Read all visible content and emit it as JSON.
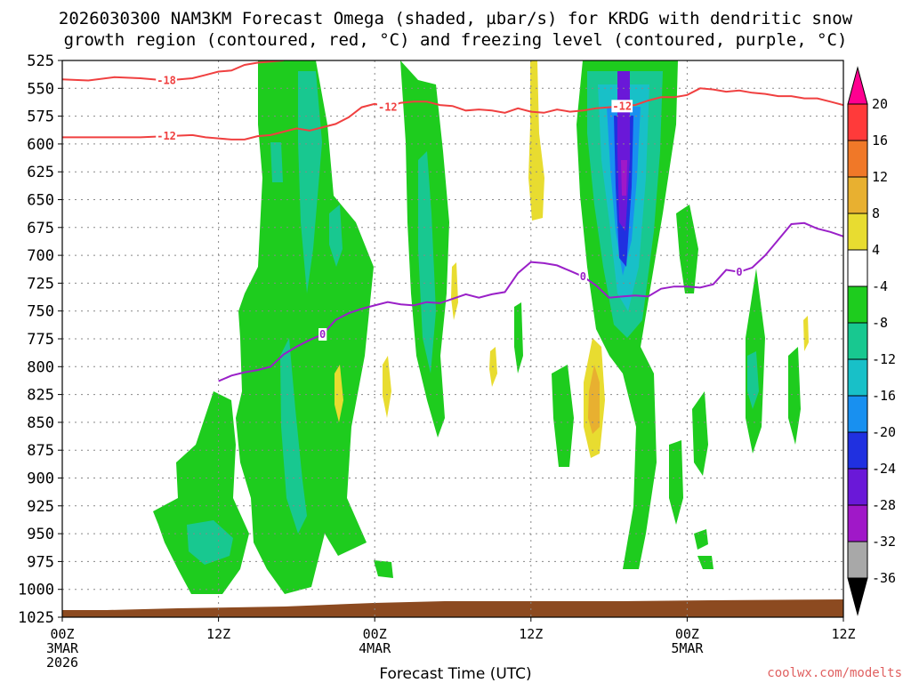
{
  "title_line1": "2026030300 NAM3KM Forecast Omega (shaded, µbar/s) for KRDG with dendritic snow",
  "title_line2": "growth region (contoured, red, °C) and freezing level (contoured, purple, °C)",
  "x_axis_title": "Forecast Time (UTC)",
  "credit": "coolwx.com/modelts",
  "colors": {
    "dgz": "#f04040",
    "freezing": "#9a20c8",
    "terrain": "#8c4a20",
    "grid": "#888888"
  },
  "chart_data": {
    "type": "heatmap",
    "x_hours_range": [
      0,
      60
    ],
    "y_pressure_range": [
      525,
      1025
    ],
    "y_ticks": [
      525,
      550,
      575,
      600,
      625,
      650,
      675,
      700,
      725,
      750,
      775,
      800,
      825,
      850,
      875,
      900,
      925,
      950,
      975,
      1000,
      1025
    ],
    "x_ticks": [
      {
        "hour": 0,
        "lines": [
          "00Z",
          "3MAR",
          "2026"
        ]
      },
      {
        "hour": 12,
        "lines": [
          "12Z"
        ]
      },
      {
        "hour": 24,
        "lines": [
          "00Z",
          "4MAR"
        ]
      },
      {
        "hour": 36,
        "lines": [
          "12Z"
        ]
      },
      {
        "hour": 48,
        "lines": [
          "00Z",
          "5MAR"
        ]
      },
      {
        "hour": 60,
        "lines": [
          "12Z"
        ]
      }
    ],
    "colorbar": [
      {
        "label": "20",
        "color": "#ff0090"
      },
      {
        "label": "16",
        "color": "#ff3a3a"
      },
      {
        "label": "12",
        "color": "#f07828"
      },
      {
        "label": "8",
        "color": "#e8b030"
      },
      {
        "label": "4",
        "color": "#e8dc30"
      },
      {
        "label": "-4",
        "color": "#ffffff"
      },
      {
        "label": "-8",
        "color": "#1ecc1e"
      },
      {
        "label": "-12",
        "color": "#18c890"
      },
      {
        "label": "-16",
        "color": "#18c0c8"
      },
      {
        "label": "-20",
        "color": "#1890f0"
      },
      {
        "label": "-24",
        "color": "#2030e0"
      },
      {
        "label": "-28",
        "color": "#6a18d8"
      },
      {
        "label": "-32",
        "color": "#a018c8"
      },
      {
        "label": "-36",
        "color": "#a8a8a8"
      },
      {
        "label": "",
        "color": "#000000"
      }
    ],
    "dgz_contours": [
      {
        "label": "-18",
        "points": [
          [
            0,
            542
          ],
          [
            2,
            543
          ],
          [
            4,
            540
          ],
          [
            6,
            541
          ],
          [
            8,
            543
          ],
          [
            10,
            541
          ],
          [
            11,
            538
          ],
          [
            12,
            535
          ],
          [
            13,
            534
          ],
          [
            14,
            529
          ],
          [
            15,
            527
          ],
          [
            16,
            526
          ],
          [
            17,
            525
          ]
        ]
      },
      {
        "label": "-12",
        "points": [
          [
            0,
            594
          ],
          [
            2,
            594
          ],
          [
            4,
            594
          ],
          [
            6,
            594
          ],
          [
            8,
            593
          ],
          [
            10,
            592
          ],
          [
            11,
            594
          ],
          [
            12,
            595
          ],
          [
            13,
            596
          ],
          [
            14,
            596
          ],
          [
            15,
            593
          ],
          [
            16,
            592
          ],
          [
            17,
            589
          ],
          [
            18,
            586
          ],
          [
            19,
            588
          ],
          [
            20,
            585
          ],
          [
            21,
            582
          ],
          [
            22,
            576
          ],
          [
            23,
            567
          ],
          [
            24,
            564
          ],
          [
            25,
            567
          ],
          [
            26,
            563
          ],
          [
            27,
            562
          ],
          [
            28,
            562
          ],
          [
            29,
            565
          ],
          [
            30,
            566
          ],
          [
            31,
            570
          ],
          [
            32,
            569
          ],
          [
            33,
            570
          ],
          [
            34,
            572
          ],
          [
            35,
            568
          ],
          [
            36,
            571
          ],
          [
            37,
            572
          ],
          [
            38,
            569
          ],
          [
            39,
            571
          ],
          [
            40,
            570
          ],
          [
            41,
            568
          ],
          [
            42,
            567
          ],
          [
            43,
            566
          ],
          [
            44,
            565
          ],
          [
            45,
            561
          ],
          [
            46,
            558
          ],
          [
            47,
            558
          ],
          [
            48,
            556
          ],
          [
            49,
            550
          ],
          [
            50,
            551
          ],
          [
            51,
            553
          ],
          [
            52,
            552
          ],
          [
            53,
            554
          ],
          [
            54,
            555
          ],
          [
            55,
            557
          ],
          [
            56,
            557
          ],
          [
            57,
            559
          ],
          [
            58,
            559
          ],
          [
            59,
            562
          ],
          [
            60,
            565
          ]
        ]
      }
    ],
    "freezing_contour": {
      "label": "0",
      "points": [
        [
          12,
          813
        ],
        [
          13,
          808
        ],
        [
          14,
          805
        ],
        [
          15,
          803
        ],
        [
          16,
          800
        ],
        [
          17,
          789
        ],
        [
          18,
          782
        ],
        [
          19,
          776
        ],
        [
          20,
          771
        ],
        [
          21,
          758
        ],
        [
          22,
          752
        ],
        [
          23,
          748
        ],
        [
          24,
          745
        ],
        [
          25,
          742
        ],
        [
          26,
          744
        ],
        [
          27,
          745
        ],
        [
          28,
          742
        ],
        [
          29,
          743
        ],
        [
          30,
          739
        ],
        [
          31,
          735
        ],
        [
          32,
          738
        ],
        [
          33,
          735
        ],
        [
          34,
          733
        ],
        [
          35,
          716
        ],
        [
          36,
          706
        ],
        [
          37,
          707
        ],
        [
          38,
          709
        ],
        [
          39,
          714
        ],
        [
          40,
          719
        ],
        [
          41,
          727
        ],
        [
          42,
          738
        ],
        [
          43,
          737
        ],
        [
          44,
          736
        ],
        [
          45,
          737
        ],
        [
          46,
          730
        ],
        [
          47,
          728
        ],
        [
          48,
          728
        ],
        [
          49,
          729
        ],
        [
          50,
          726
        ],
        [
          51,
          713
        ],
        [
          52,
          715
        ],
        [
          53,
          711
        ],
        [
          54,
          700
        ],
        [
          55,
          686
        ],
        [
          56,
          672
        ],
        [
          57,
          671
        ],
        [
          58,
          676
        ],
        [
          59,
          679
        ],
        [
          60,
          683
        ]
      ]
    }
  }
}
